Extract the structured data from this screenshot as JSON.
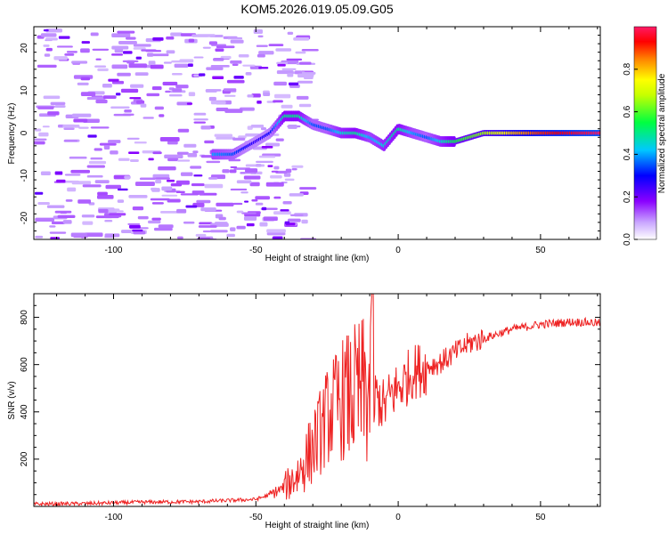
{
  "title": "KOM5.2026.019.05.09.G05",
  "chart_data": [
    {
      "type": "heatmap",
      "name": "spectrogram",
      "xlabel": "Height of straight line (km)",
      "ylabel": "Frequency (Hz)",
      "xlim": [
        -128,
        71
      ],
      "ylim": [
        -25,
        25
      ],
      "xticks": [
        -100,
        -50,
        0,
        50
      ],
      "yticks": [
        -20,
        -10,
        0,
        10,
        20
      ],
      "colorbar": {
        "label": "Normalized spectral amplitude",
        "range": [
          0,
          1
        ],
        "ticks": [
          "0.0",
          "0.2",
          "0.4",
          "0.6",
          "0.8"
        ],
        "colormap": [
          "#ffffff",
          "#8a00ff",
          "#0000ff",
          "#00c8ff",
          "#00ff40",
          "#ffff00",
          "#ff8000",
          "#ff0000",
          "#ff1a66"
        ]
      },
      "ridge": {
        "x": [
          -65,
          -58,
          -50,
          -45,
          -40,
          -35,
          -30,
          -25,
          -20,
          -15,
          -10,
          -5,
          0,
          5,
          10,
          15,
          20,
          25,
          30,
          40,
          50,
          60,
          71
        ],
        "y": [
          -5,
          -5,
          -2,
          0,
          4,
          4,
          2,
          1,
          0,
          0,
          -1,
          -3,
          1,
          0,
          -1,
          -2,
          -2,
          -1,
          0,
          0,
          0,
          0,
          0
        ],
        "amp": [
          0.4,
          0.35,
          0.25,
          0.3,
          0.5,
          0.5,
          0.35,
          0.35,
          0.45,
          0.5,
          0.4,
          0.45,
          0.5,
          0.4,
          0.35,
          0.45,
          0.55,
          0.6,
          0.65,
          0.8,
          0.9,
          0.95,
          1.0
        ]
      }
    },
    {
      "type": "line",
      "name": "snr",
      "xlabel": "Height of straight line (km)",
      "ylabel": "SNR (v/v)",
      "xlim": [
        -128,
        71
      ],
      "ylim": [
        0,
        900
      ],
      "xticks": [
        -100,
        -50,
        0,
        50
      ],
      "yticks": [
        200,
        400,
        600,
        800
      ],
      "color": "#ee2222",
      "series": [
        {
          "name": "SNR",
          "x": [
            -128,
            -110,
            -90,
            -70,
            -60,
            -50,
            -45,
            -40,
            -35,
            -30,
            -28,
            -25,
            -22,
            -20,
            -18,
            -15,
            -12,
            -10,
            -8,
            -5,
            -2,
            0,
            3,
            5,
            8,
            10,
            15,
            20,
            25,
            30,
            35,
            40,
            45,
            50,
            55,
            60,
            65,
            71
          ],
          "y": [
            10,
            12,
            18,
            20,
            25,
            30,
            50,
            80,
            140,
            250,
            300,
            380,
            420,
            450,
            460,
            470,
            480,
            490,
            470,
            420,
            480,
            500,
            540,
            570,
            580,
            590,
            610,
            650,
            690,
            710,
            730,
            750,
            760,
            770,
            775,
            780,
            780,
            775
          ]
        }
      ]
    }
  ]
}
